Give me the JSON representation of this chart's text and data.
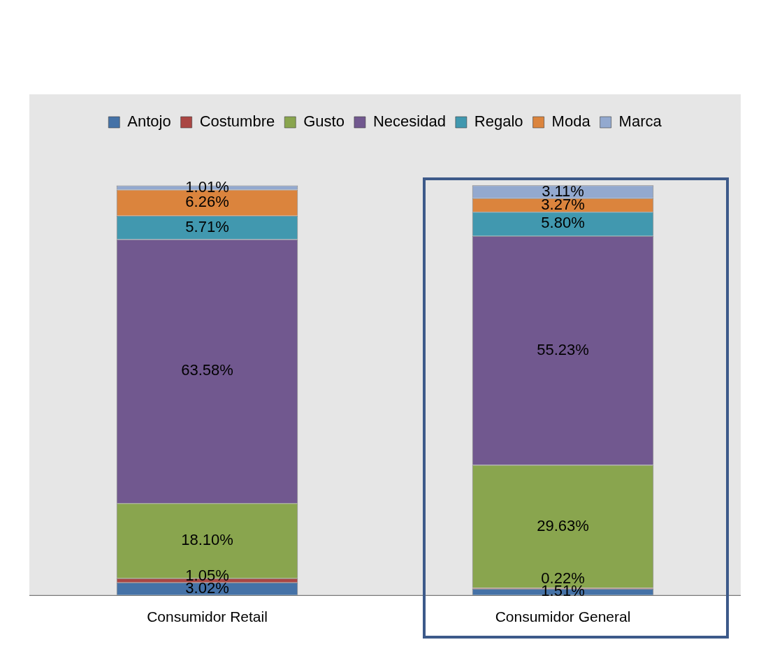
{
  "chart_data": {
    "type": "bar",
    "stacked": true,
    "legend": "top",
    "grid": false,
    "tick_labels": "x",
    "categories": [
      "Consumidor Retail",
      "Consumidor General"
    ],
    "series": [
      {
        "name": "Antojo",
        "color": "#4572a7",
        "values": [
          3.02,
          1.51
        ],
        "value_labels": [
          "3.02%",
          "1.51%"
        ]
      },
      {
        "name": "Costumbre",
        "color": "#aa4643",
        "values": [
          1.05,
          0.22
        ],
        "value_labels": [
          "1.05%",
          "0.22%"
        ]
      },
      {
        "name": "Gusto",
        "color": "#89a54e",
        "values": [
          18.1,
          29.63
        ],
        "value_labels": [
          "18.10%",
          "29.63%"
        ]
      },
      {
        "name": "Necesidad",
        "color": "#71588f",
        "values": [
          63.58,
          55.23
        ],
        "value_labels": [
          "63.58%",
          "55.23%"
        ]
      },
      {
        "name": "Regalo",
        "color": "#4198af",
        "values": [
          5.71,
          5.8
        ],
        "value_labels": [
          "5.71%",
          "5.80%"
        ]
      },
      {
        "name": "Moda",
        "color": "#db843d",
        "values": [
          6.26,
          3.27
        ],
        "value_labels": [
          "6.26%",
          "3.27%"
        ]
      },
      {
        "name": "Marca",
        "color": "#93a9cf",
        "values": [
          1.01,
          3.11
        ],
        "value_labels": [
          "1.01%",
          "3.11%"
        ]
      }
    ]
  }
}
